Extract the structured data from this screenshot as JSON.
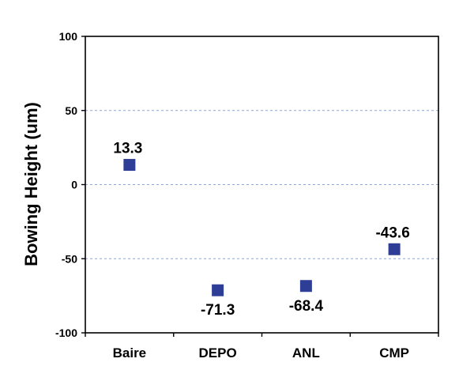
{
  "chart_data": {
    "type": "scatter",
    "title": "",
    "xlabel": "",
    "ylabel": "Bowing Height (um)",
    "categories": [
      "Baire",
      "DEPO",
      "ANL",
      "CMP"
    ],
    "values": [
      13.3,
      -71.3,
      -68.4,
      -43.6
    ],
    "data_labels": [
      "13.3",
      "-71.3",
      "-68.4",
      "-43.6"
    ],
    "ylim": [
      -100,
      100
    ],
    "yticks": [
      -100,
      -50,
      0,
      50,
      100
    ],
    "ytick_labels": [
      "-100",
      "-50",
      "0",
      "50",
      "100"
    ],
    "grid": true,
    "legend": "none",
    "marker": "square"
  },
  "colors": {
    "marker": "#2E3D96",
    "grid": "#8FA6CF",
    "axis": "#000000"
  }
}
